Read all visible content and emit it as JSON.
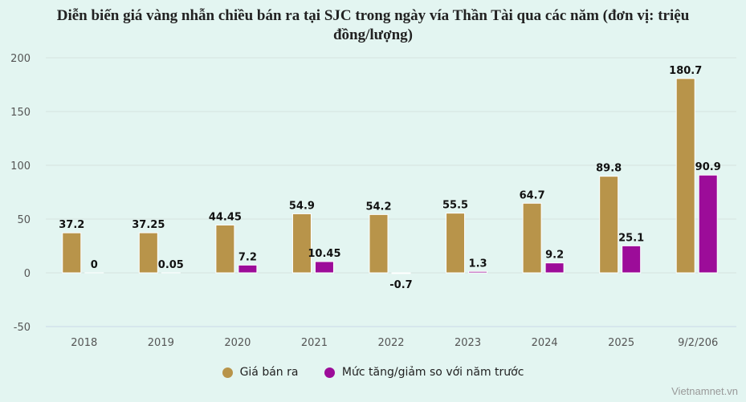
{
  "chart_data": {
    "type": "bar",
    "title": "Diễn biến giá vàng nhẫn chiều bán ra tại SJC trong ngày vía Thần Tài qua các năm (đơn vị: triệu đồng/lượng)",
    "categories": [
      "2018",
      "2019",
      "2020",
      "2021",
      "2022",
      "2023",
      "2024",
      "2025",
      "9/2/206"
    ],
    "series": [
      {
        "name": "Giá bán ra",
        "color": "#b8944a",
        "values": [
          37.2,
          37.25,
          44.45,
          54.9,
          54.2,
          55.5,
          64.7,
          89.8,
          180.7
        ],
        "labels": [
          "37.2",
          "37.25",
          "44.45",
          "54.9",
          "54.2",
          "55.5",
          "64.7",
          "89.8",
          "180.7"
        ]
      },
      {
        "name": "Mức tăng/giảm so với năm trước",
        "color": "#9c0c99",
        "values": [
          0,
          0.05,
          7.2,
          10.45,
          -0.7,
          1.3,
          9.2,
          25.1,
          90.9
        ],
        "labels": [
          "0",
          "0.05",
          "7.2",
          "10.45",
          "-0.7",
          "1.3",
          "9.2",
          "25.1",
          "90.9"
        ]
      }
    ],
    "ylim": [
      -50,
      200
    ],
    "yticks": [
      -50,
      0,
      50,
      100,
      150,
      200
    ],
    "grid": true,
    "legend": "bottom"
  },
  "credit": "Vietnamnet.vn"
}
